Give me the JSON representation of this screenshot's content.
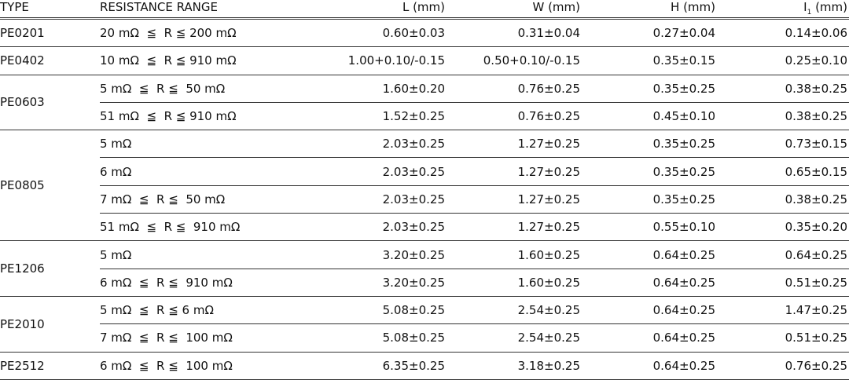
{
  "headers": {
    "type": "TYPE",
    "range": "RESISTANCE RANGE",
    "l": "L (mm)",
    "w": "W (mm)",
    "h": "H (mm)",
    "i": "I",
    "i_sub": "1",
    "i_unit": " (mm)"
  },
  "groups": [
    {
      "type": "PE0201",
      "rows": [
        {
          "range": "20 mΩ  ≦  R ≦ 200 mΩ",
          "l": "0.60±0.03",
          "w": "0.31±0.04",
          "h": "0.27±0.04",
          "i": "0.14±0.06"
        }
      ]
    },
    {
      "type": "PE0402",
      "rows": [
        {
          "range": "10 mΩ  ≦  R ≦ 910 mΩ",
          "l": "1.00+0.10/-0.15",
          "w": "0.50+0.10/-0.15",
          "h": "0.35±0.15",
          "i": "0.25±0.10"
        }
      ]
    },
    {
      "type": "PE0603",
      "rows": [
        {
          "range": "5 mΩ  ≦  R ≦  50 mΩ",
          "l": "1.60±0.20",
          "w": "0.76±0.25",
          "h": "0.35±0.25",
          "i": "0.38±0.25"
        },
        {
          "range": "51 mΩ  ≦  R ≦ 910 mΩ",
          "l": "1.52±0.25",
          "w": "0.76±0.25",
          "h": "0.45±0.10",
          "i": "0.38±0.25"
        }
      ]
    },
    {
      "type": "PE0805",
      "rows": [
        {
          "range": "5 mΩ",
          "l": "2.03±0.25",
          "w": "1.27±0.25",
          "h": "0.35±0.25",
          "i": "0.73±0.15"
        },
        {
          "range": "6 mΩ",
          "l": "2.03±0.25",
          "w": "1.27±0.25",
          "h": "0.35±0.25",
          "i": "0.65±0.15"
        },
        {
          "range": "7 mΩ  ≦  R ≦  50 mΩ",
          "l": "2.03±0.25",
          "w": "1.27±0.25",
          "h": "0.35±0.25",
          "i": "0.38±0.25"
        },
        {
          "range": "51 mΩ  ≦  R ≦  910 mΩ",
          "l": "2.03±0.25",
          "w": "1.27±0.25",
          "h": "0.55±0.10",
          "i": "0.35±0.20"
        }
      ]
    },
    {
      "type": "PE1206",
      "rows": [
        {
          "range": "5 mΩ",
          "l": "3.20±0.25",
          "w": "1.60±0.25",
          "h": "0.64±0.25",
          "i": "0.64±0.25"
        },
        {
          "range": "6 mΩ  ≦  R ≦  910 mΩ",
          "l": "3.20±0.25",
          "w": "1.60±0.25",
          "h": "0.64±0.25",
          "i": "0.51±0.25"
        }
      ]
    },
    {
      "type": "PE2010",
      "rows": [
        {
          "range": "5 mΩ  ≦  R ≦ 6 mΩ",
          "l": "5.08±0.25",
          "w": "2.54±0.25",
          "h": "0.64±0.25",
          "i": "1.47±0.25"
        },
        {
          "range": "7 mΩ  ≦  R ≦  100 mΩ",
          "l": "5.08±0.25",
          "w": "2.54±0.25",
          "h": "0.64±0.25",
          "i": "0.51±0.25"
        }
      ]
    },
    {
      "type": "PE2512",
      "rows": [
        {
          "range": "6 mΩ  ≦  R ≦  100 mΩ",
          "l": "6.35±0.25",
          "w": "3.18±0.25",
          "h": "0.64±0.25",
          "i": "0.76±0.25"
        }
      ]
    }
  ]
}
